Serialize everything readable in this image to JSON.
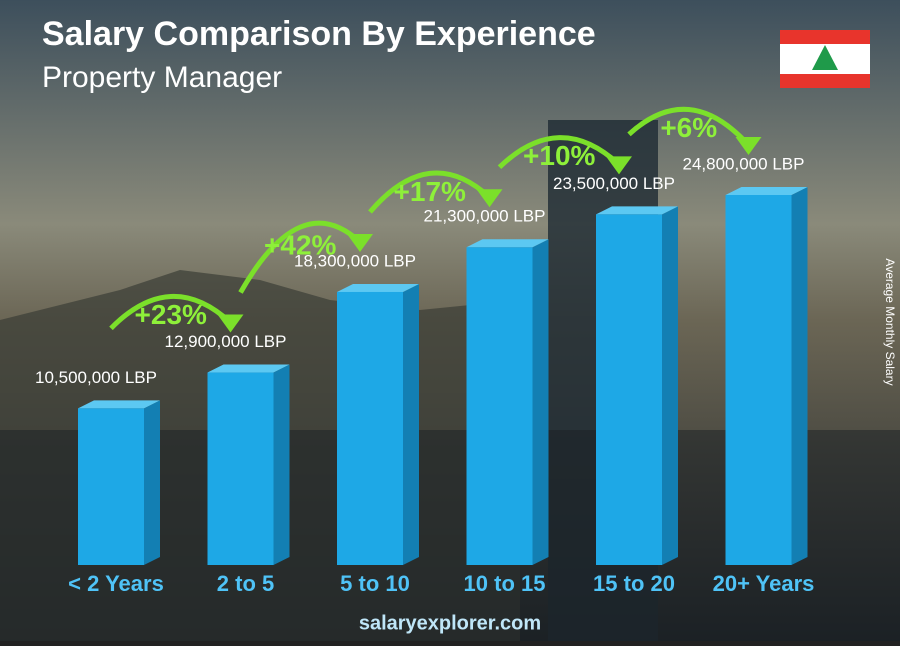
{
  "chart_data": {
    "type": "bar",
    "title": "Salary Comparison By Experience",
    "subtitle": "Property Manager",
    "y_label": "Average Monthly Salary",
    "source": "salaryexplorer.com",
    "categories": [
      "< 2 Years",
      "2 to 5",
      "5 to 10",
      "10 to 15",
      "15 to 20",
      "20+ Years"
    ],
    "values": [
      10500000,
      12900000,
      18300000,
      21300000,
      23500000,
      24800000
    ],
    "value_labels": [
      "10,500,000 LBP",
      "12,900,000 LBP",
      "18,300,000 LBP",
      "21,300,000 LBP",
      "23,500,000 LBP",
      "24,800,000 LBP"
    ],
    "increases": [
      "+23%",
      "+42%",
      "+17%",
      "+10%",
      "+6%"
    ],
    "color": "#1ea8e6"
  }
}
